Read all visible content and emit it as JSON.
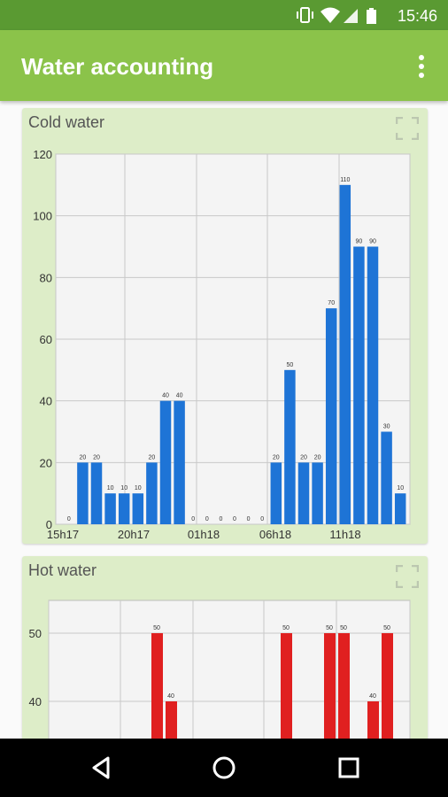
{
  "status_bar": {
    "time": "15:46",
    "icons": [
      "vibrate-icon",
      "wifi-icon",
      "signal-icon",
      "battery-icon"
    ]
  },
  "app_bar": {
    "title": "Water accounting",
    "menu_icon": "more-vert-icon"
  },
  "colors": {
    "primary": "#8bc34a",
    "primary_dark": "#5a9a32",
    "card_bg": "#ddedc8",
    "cold_bar": "#1e74d6",
    "hot_bar": "#e02020"
  },
  "cards": [
    {
      "title": "Cold water",
      "expand_icon": "fullscreen-icon"
    },
    {
      "title": "Hot water",
      "expand_icon": "fullscreen-icon"
    }
  ],
  "chart_data": [
    {
      "type": "bar",
      "title": "Cold water",
      "ylim": [
        0,
        120
      ],
      "y_ticks": [
        "0",
        "20",
        "40",
        "60",
        "80",
        "100",
        "120"
      ],
      "x_tick_labels": [
        "15h17",
        "20h17",
        "01h18",
        "06h18",
        "11h18"
      ],
      "grid": true,
      "values": [
        0,
        20,
        20,
        10,
        10,
        10,
        20,
        40,
        40,
        0,
        0,
        0,
        0,
        0,
        0,
        20,
        50,
        20,
        20,
        70,
        110,
        90,
        90,
        30,
        10
      ],
      "data_labels": [
        "0",
        "20",
        "20",
        "10",
        "10",
        "10",
        "20",
        "40",
        "40",
        "0",
        "0",
        "0",
        "0",
        "0",
        "0",
        "20",
        "50",
        "20",
        "20",
        "70",
        "110",
        "90",
        "90",
        "30",
        "10"
      ]
    },
    {
      "type": "bar",
      "title": "Hot water",
      "y_ticks": [
        "40",
        "50"
      ],
      "grid": true,
      "values": [
        50,
        40,
        50,
        50,
        50,
        40,
        50
      ],
      "data_labels": [
        "50",
        "40",
        "50",
        "50",
        "50",
        "40",
        "50"
      ]
    }
  ],
  "nav_bar": {
    "buttons": [
      "back-icon",
      "home-icon",
      "recents-icon"
    ]
  }
}
